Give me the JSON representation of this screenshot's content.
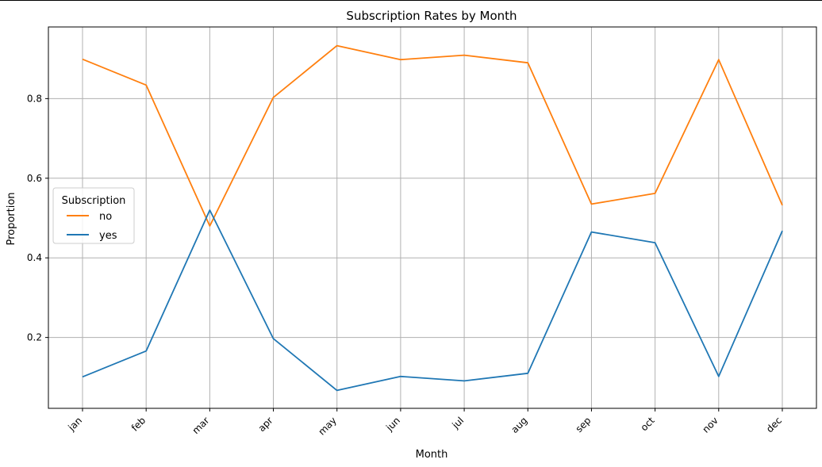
{
  "chart_data": {
    "type": "line",
    "title": "Subscription Rates by Month",
    "xlabel": "Month",
    "ylabel": "Proportion",
    "categories": [
      "jan",
      "feb",
      "mar",
      "apr",
      "may",
      "jun",
      "jul",
      "aug",
      "sep",
      "oct",
      "nov",
      "dec"
    ],
    "ylim": [
      0.022,
      0.98
    ],
    "yticks": [
      0.2,
      0.4,
      0.6,
      0.8
    ],
    "grid": true,
    "legend": {
      "title": "Subscription",
      "placement": "center-left"
    },
    "series": [
      {
        "name": "no",
        "color": "#ff7f0e",
        "values": [
          0.899,
          0.834,
          0.48,
          0.803,
          0.933,
          0.898,
          0.909,
          0.89,
          0.535,
          0.562,
          0.898,
          0.532
        ]
      },
      {
        "name": "yes",
        "color": "#1f77b4",
        "values": [
          0.101,
          0.166,
          0.52,
          0.197,
          0.067,
          0.102,
          0.091,
          0.11,
          0.465,
          0.438,
          0.102,
          0.468
        ]
      }
    ]
  }
}
